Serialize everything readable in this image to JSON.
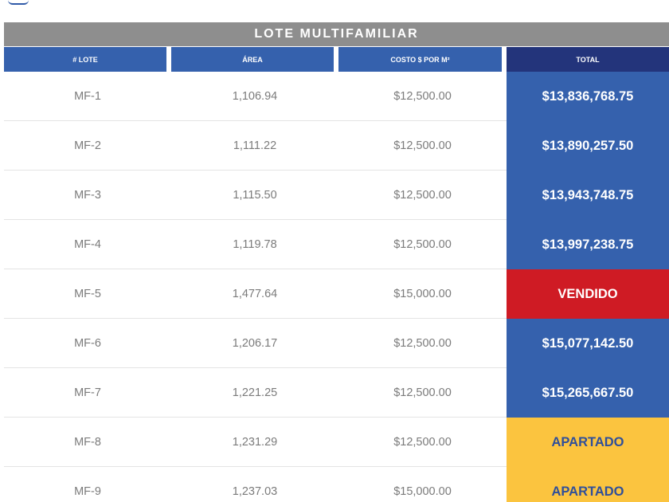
{
  "table": {
    "title": "LOTE MULTIFAMILIAR",
    "headers": [
      "# LOTE",
      "ÁREA",
      "COSTO $ POR M²",
      "TOTAL"
    ],
    "rows": [
      {
        "lote": "MF-1",
        "area": "1,106.94",
        "costo": "$12,500.00",
        "total": "$13,836,768.75",
        "status": "price"
      },
      {
        "lote": "MF-2",
        "area": "1,111.22",
        "costo": "$12,500.00",
        "total": "$13,890,257.50",
        "status": "price"
      },
      {
        "lote": "MF-3",
        "area": "1,115.50",
        "costo": "$12,500.00",
        "total": "$13,943,748.75",
        "status": "price"
      },
      {
        "lote": "MF-4",
        "area": "1,119.78",
        "costo": "$12,500.00",
        "total": "$13,997,238.75",
        "status": "price"
      },
      {
        "lote": "MF-5",
        "area": "1,477.64",
        "costo": "$15,000.00",
        "total": "VENDIDO",
        "status": "sold"
      },
      {
        "lote": "MF-6",
        "area": "1,206.17",
        "costo": "$12,500.00",
        "total": "$15,077,142.50",
        "status": "price"
      },
      {
        "lote": "MF-7",
        "area": "1,221.25",
        "costo": "$12,500.00",
        "total": "$15,265,667.50",
        "status": "price"
      },
      {
        "lote": "MF-8",
        "area": "1,231.29",
        "costo": "$12,500.00",
        "total": "APARTADO",
        "status": "reserved"
      },
      {
        "lote": "MF-9",
        "area": "1,237.03",
        "costo": "$15,000.00",
        "total": "APARTADO",
        "status": "reserved"
      }
    ]
  },
  "colors": {
    "title_bg": "#8e8e8e",
    "header_bg": "#3561ad",
    "total_header_bg": "#23347b",
    "price_bg": "#3561ad",
    "sold_bg": "#cf1b24",
    "reserved_bg": "#fbc43f",
    "reserved_text": "#2f4f9a"
  }
}
